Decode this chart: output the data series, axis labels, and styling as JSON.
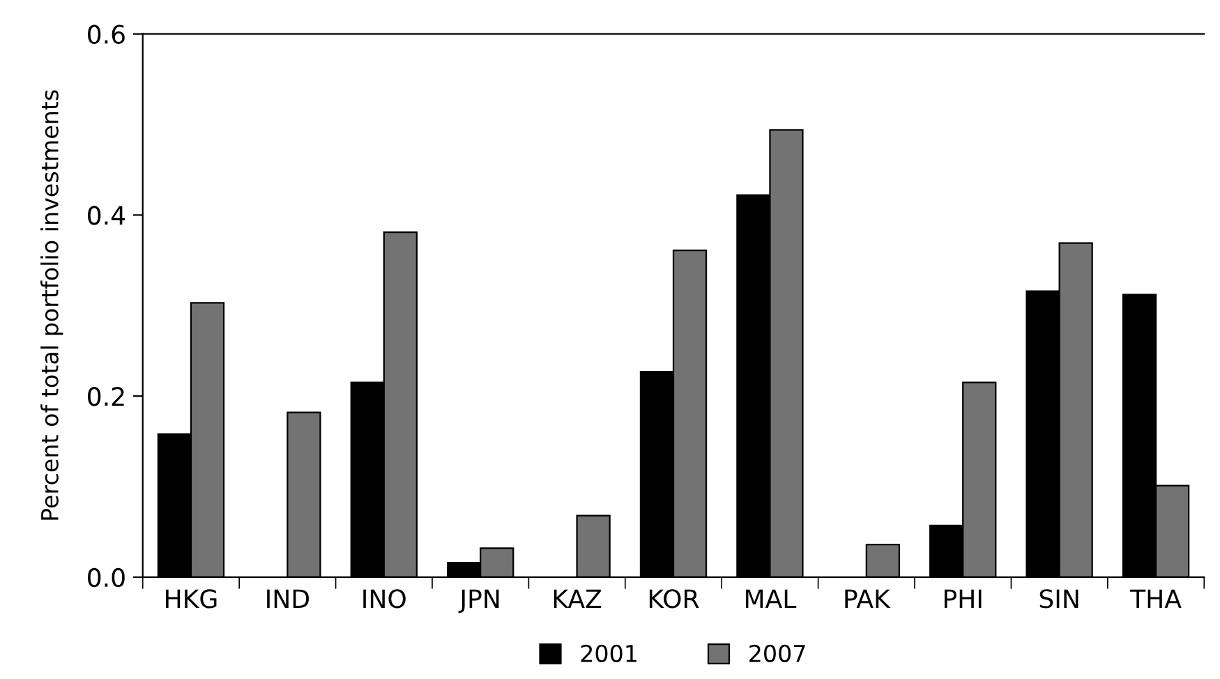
{
  "chart_data": {
    "type": "bar",
    "ylabel": "Percent of total portfolio investments",
    "categories": [
      "HKG",
      "IND",
      "INO",
      "JPN",
      "KAZ",
      "KOR",
      "MAL",
      "PAK",
      "PHI",
      "SIN",
      "THA"
    ],
    "series": [
      {
        "name": "2001",
        "color": "#000000",
        "values": [
          0.158,
          null,
          0.215,
          0.016,
          null,
          0.227,
          0.422,
          null,
          0.057,
          0.316,
          0.312
        ]
      },
      {
        "name": "2007",
        "color": "#737373",
        "values": [
          0.303,
          0.182,
          0.381,
          0.032,
          0.068,
          0.361,
          0.494,
          0.036,
          0.215,
          0.369,
          0.101
        ]
      }
    ],
    "ylim": [
      0,
      0.6
    ],
    "yticks": [
      {
        "value": 0,
        "label": "0.0"
      },
      {
        "value": 0.2,
        "label": "0.2"
      },
      {
        "value": 0.4,
        "label": "0.4"
      },
      {
        "value": 0.6,
        "label": "0.6"
      }
    ],
    "grid": false,
    "legend": "bottom"
  }
}
